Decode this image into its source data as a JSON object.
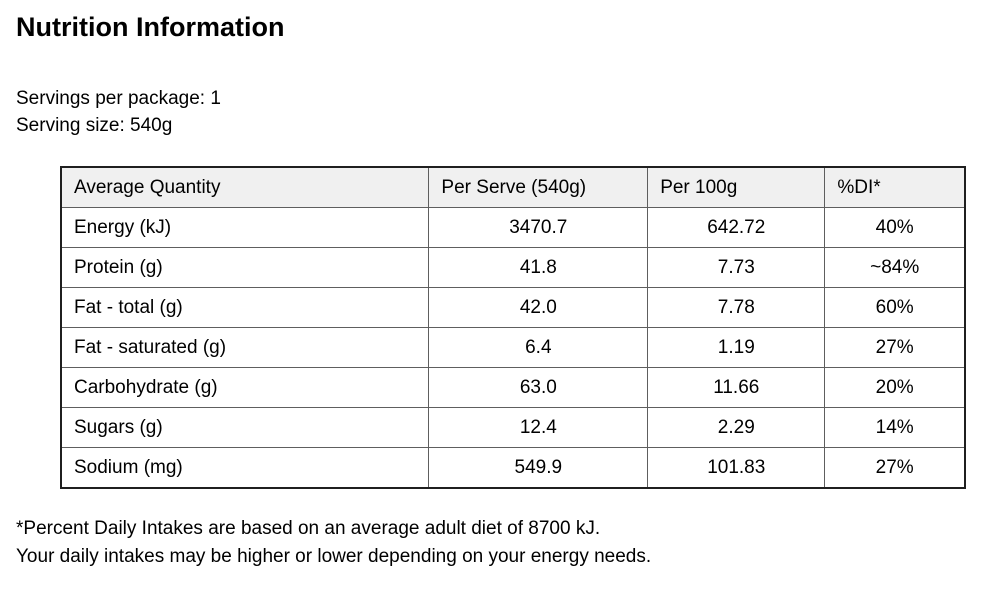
{
  "header": {
    "title": "Nutrition Information"
  },
  "serving_info": {
    "servings_per_package": "Servings per package: 1",
    "serving_size": "Serving size: 540g"
  },
  "table": {
    "columns": [
      "Average Quantity",
      "Per Serve (540g)",
      "Per 100g",
      "%DI*"
    ],
    "rows": [
      {
        "name": "Energy (kJ)",
        "per_serve": "3470.7",
        "per_100g": "642.72",
        "di": "40%"
      },
      {
        "name": "Protein (g)",
        "per_serve": "41.8",
        "per_100g": "7.73",
        "di": "~84%"
      },
      {
        "name": "Fat - total (g)",
        "per_serve": "42.0",
        "per_100g": "7.78",
        "di": "60%"
      },
      {
        "name": "Fat - saturated (g)",
        "per_serve": "6.4",
        "per_100g": "1.19",
        "di": "27%"
      },
      {
        "name": "Carbohydrate (g)",
        "per_serve": "63.0",
        "per_100g": "11.66",
        "di": "20%"
      },
      {
        "name": "Sugars (g)",
        "per_serve": "12.4",
        "per_100g": "2.29",
        "di": "14%"
      },
      {
        "name": "Sodium (mg)",
        "per_serve": "549.9",
        "per_100g": "101.83",
        "di": "27%"
      }
    ]
  },
  "footnote": {
    "line1": "*Percent Daily Intakes are based on an average adult diet of 8700 kJ.",
    "line2": "Your daily intakes may be higher or lower depending on your energy needs."
  },
  "colors": {
    "background": "#ffffff",
    "text": "#000000",
    "header_bg": "#f0f0f0",
    "cell_border": "#5e5e5e",
    "outer_border": "#1f1f1f"
  }
}
